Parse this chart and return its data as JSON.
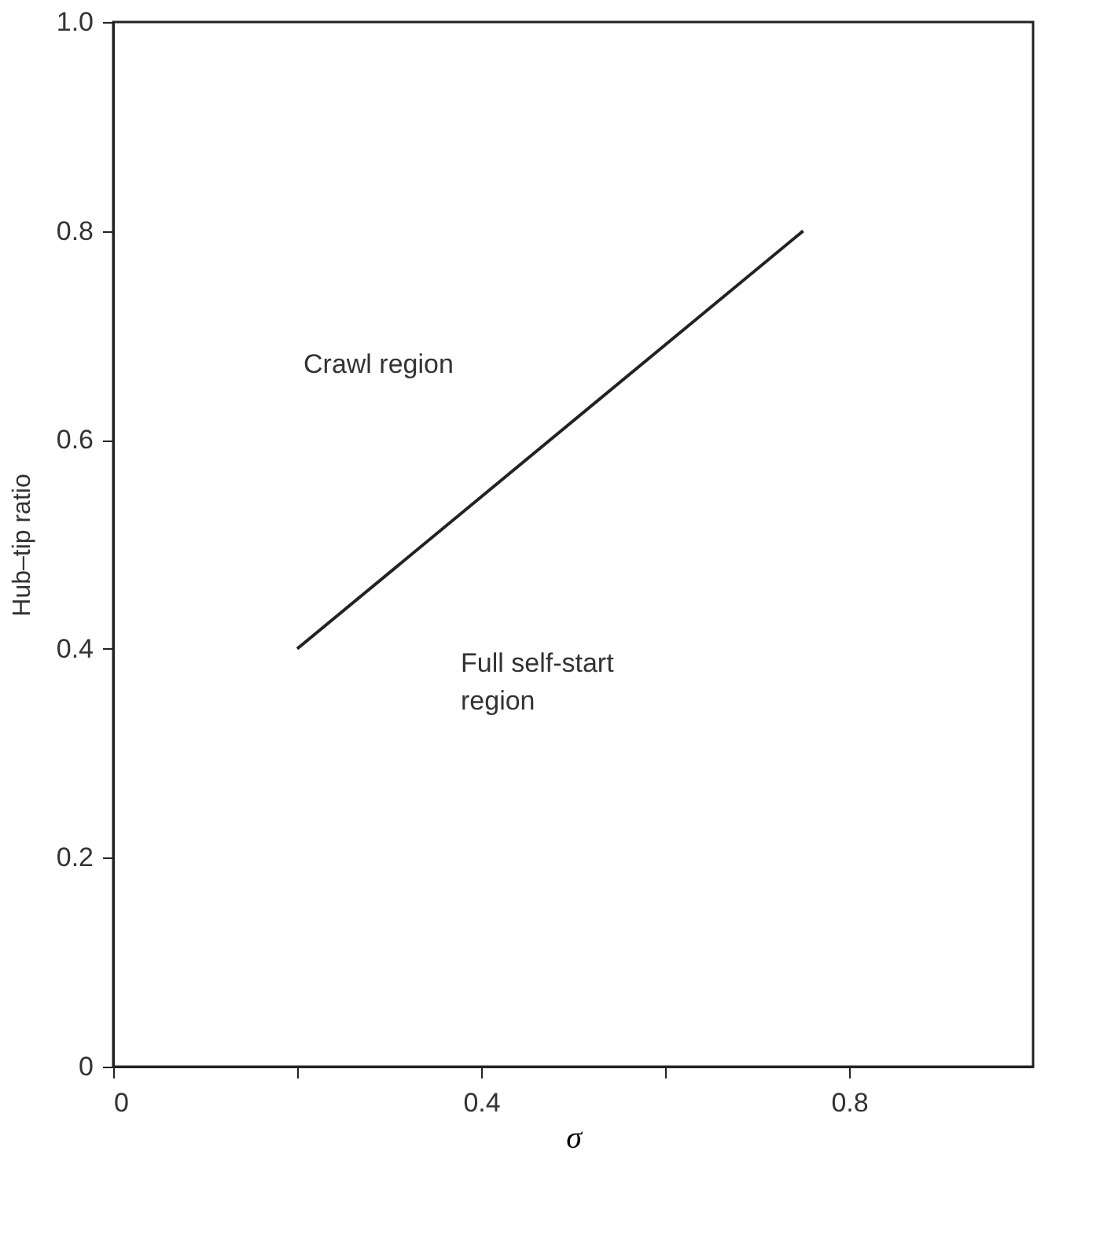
{
  "chart_data": {
    "type": "line",
    "xlabel": "σ",
    "ylabel": "Hub–tip ratio",
    "x": [
      0.2,
      0.75
    ],
    "series": [
      {
        "color": "#222222",
        "values": [
          0.4,
          0.8
        ]
      }
    ],
    "xlim": [
      0,
      1
    ],
    "ylim": [
      0,
      1
    ],
    "xticks": [
      0,
      {
        "value": 0.2,
        "label": null
      },
      0.4,
      {
        "value": 0.6,
        "label": null
      },
      0.8
    ],
    "yticks": [
      0,
      0.2,
      0.4,
      0.6,
      0.8,
      {
        "value": 1,
        "label": "1.0"
      }
    ],
    "annotations": [
      "Crawl region",
      "Full self-start\nregion"
    ],
    "grid": false,
    "legend": false,
    "marker": "none",
    "line_style": "solid"
  }
}
